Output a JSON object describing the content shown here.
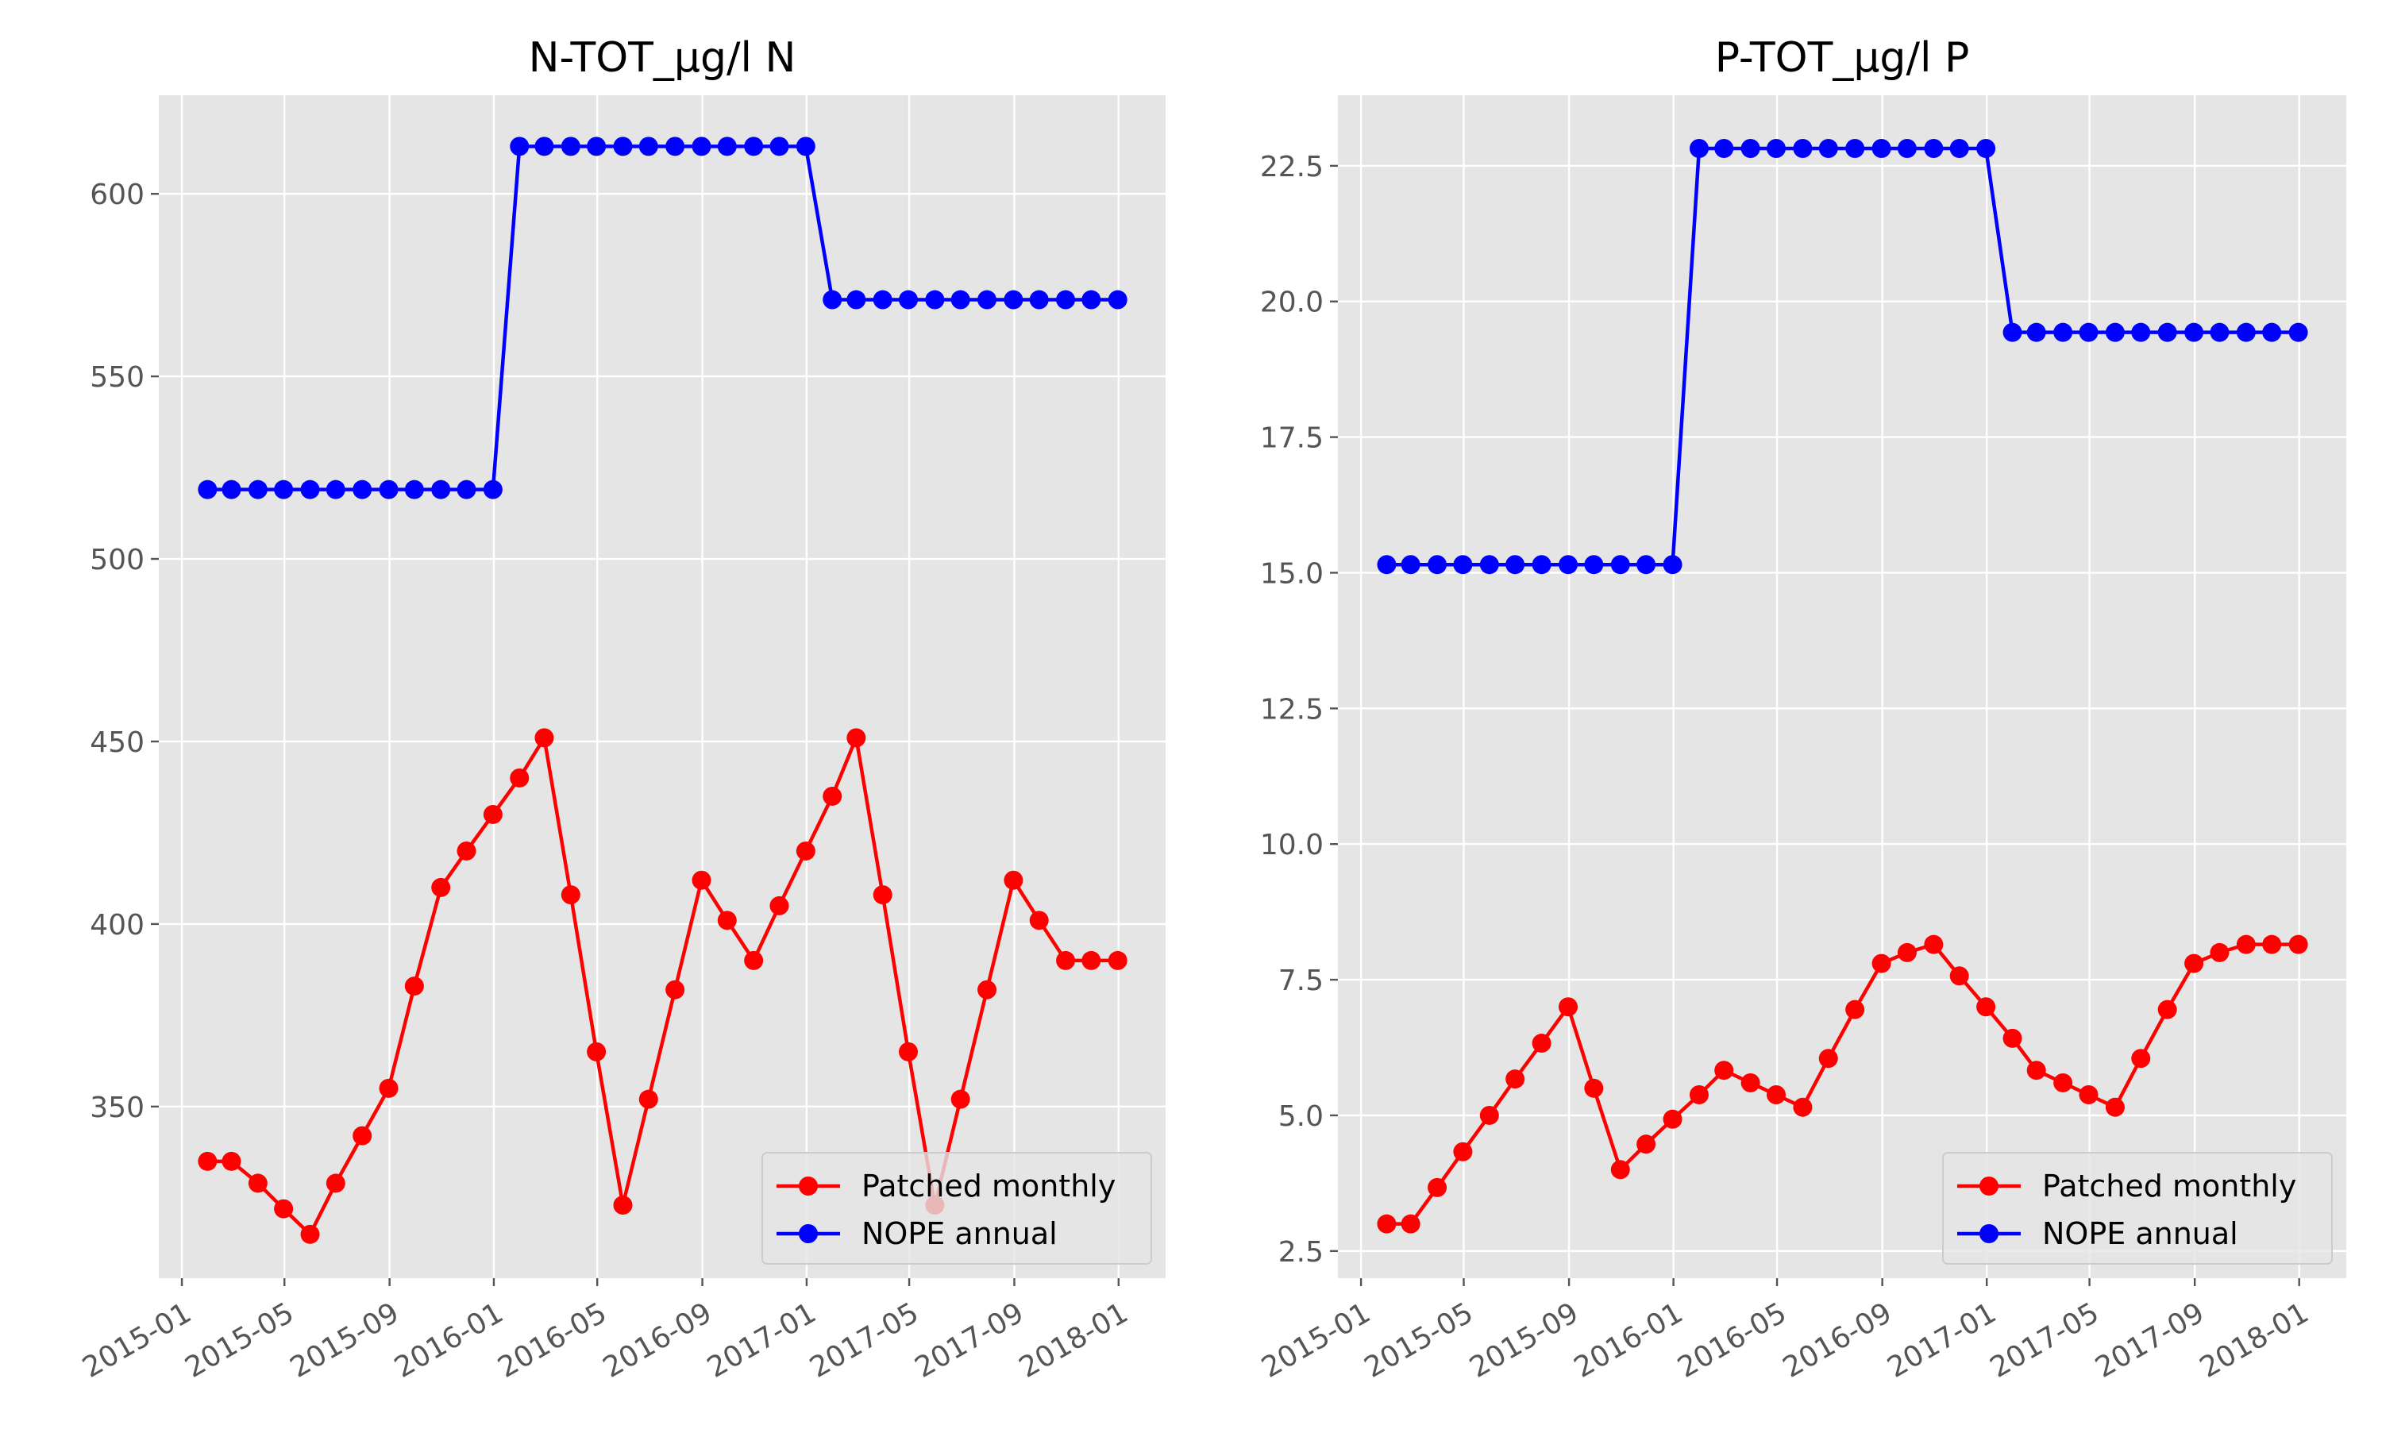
{
  "chart_data": [
    {
      "type": "line",
      "title": "N-TOT_µg/l N",
      "xlabel": "",
      "ylabel": "",
      "x_ticks": [
        "2015-01",
        "2015-05",
        "2015-09",
        "2016-01",
        "2016-05",
        "2016-09",
        "2017-01",
        "2017-05",
        "2017-09",
        "2018-01"
      ],
      "y_ticks": [
        "350",
        "400",
        "450",
        "500",
        "550",
        "600"
      ],
      "xlim": [
        "2014-12-05",
        "2018-02-25"
      ],
      "ylim": [
        303,
        627
      ],
      "grid": true,
      "legend_position": "bottom-right",
      "x": [
        "2015-01-31",
        "2015-02-28",
        "2015-03-31",
        "2015-04-30",
        "2015-05-31",
        "2015-06-30",
        "2015-07-31",
        "2015-08-31",
        "2015-09-30",
        "2015-10-31",
        "2015-11-30",
        "2015-12-31",
        "2016-01-31",
        "2016-02-29",
        "2016-03-31",
        "2016-04-30",
        "2016-05-31",
        "2016-06-30",
        "2016-07-31",
        "2016-08-31",
        "2016-09-30",
        "2016-10-31",
        "2016-11-30",
        "2016-12-31",
        "2017-01-31",
        "2017-02-28",
        "2017-03-31",
        "2017-04-30",
        "2017-05-31",
        "2017-06-30",
        "2017-07-31",
        "2017-08-31",
        "2017-09-30",
        "2017-10-31",
        "2017-11-30",
        "2017-12-31"
      ],
      "series": [
        {
          "name": "Patched monthly",
          "color": "#ff0000",
          "values": [
            335,
            335,
            329,
            322,
            315,
            329,
            342,
            355,
            383,
            410,
            420,
            430,
            440,
            451,
            408,
            365,
            323,
            352,
            382,
            412,
            401,
            390,
            405,
            420,
            435,
            451,
            408,
            365,
            323,
            352,
            382,
            412,
            401,
            390,
            390,
            390
          ]
        },
        {
          "name": "NOPE annual",
          "color": "#0000ff",
          "values": [
            519,
            519,
            519,
            519,
            519,
            519,
            519,
            519,
            519,
            519,
            519,
            519,
            613,
            613,
            613,
            613,
            613,
            613,
            613,
            613,
            613,
            613,
            613,
            613,
            571,
            571,
            571,
            571,
            571,
            571,
            571,
            571,
            571,
            571,
            571,
            571
          ]
        }
      ]
    },
    {
      "type": "line",
      "title": "P-TOT_µg/l P",
      "xlabel": "",
      "ylabel": "",
      "x_ticks": [
        "2015-01",
        "2015-05",
        "2015-09",
        "2016-01",
        "2016-05",
        "2016-09",
        "2017-01",
        "2017-05",
        "2017-09",
        "2018-01"
      ],
      "y_ticks": [
        "2.5",
        "5.0",
        "7.5",
        "10.0",
        "12.5",
        "15.0",
        "17.5",
        "20.0",
        "22.5"
      ],
      "xlim": [
        "2014-12-05",
        "2018-02-25"
      ],
      "ylim": [
        2.0,
        23.8
      ],
      "grid": true,
      "legend_position": "bottom-right",
      "x": [
        "2015-01-31",
        "2015-02-28",
        "2015-03-31",
        "2015-04-30",
        "2015-05-31",
        "2015-06-30",
        "2015-07-31",
        "2015-08-31",
        "2015-09-30",
        "2015-10-31",
        "2015-11-30",
        "2015-12-31",
        "2016-01-31",
        "2016-02-29",
        "2016-03-31",
        "2016-04-30",
        "2016-05-31",
        "2016-06-30",
        "2016-07-31",
        "2016-08-31",
        "2016-09-30",
        "2016-10-31",
        "2016-11-30",
        "2016-12-31",
        "2017-01-31",
        "2017-02-28",
        "2017-03-31",
        "2017-04-30",
        "2017-05-31",
        "2017-06-30",
        "2017-07-31",
        "2017-08-31",
        "2017-09-30",
        "2017-10-31",
        "2017-11-30",
        "2017-12-31"
      ],
      "series": [
        {
          "name": "Patched monthly",
          "color": "#ff0000",
          "values": [
            3.0,
            3.0,
            3.67,
            4.33,
            5.0,
            5.67,
            6.33,
            7.0,
            5.5,
            4.0,
            4.47,
            4.93,
            5.38,
            5.83,
            5.6,
            5.38,
            5.15,
            6.05,
            6.95,
            7.8,
            8.0,
            8.15,
            7.57,
            7.0,
            6.42,
            5.83,
            5.6,
            5.38,
            5.15,
            6.05,
            6.95,
            7.8,
            8.0,
            8.15,
            8.15,
            8.15
          ]
        },
        {
          "name": "NOPE annual",
          "color": "#0000ff",
          "values": [
            15.15,
            15.15,
            15.15,
            15.15,
            15.15,
            15.15,
            15.15,
            15.15,
            15.15,
            15.15,
            15.15,
            15.15,
            22.82,
            22.82,
            22.82,
            22.82,
            22.82,
            22.82,
            22.82,
            22.82,
            22.82,
            22.82,
            22.82,
            22.82,
            19.43,
            19.43,
            19.43,
            19.43,
            19.43,
            19.43,
            19.43,
            19.43,
            19.43,
            19.43,
            19.43,
            19.43
          ]
        }
      ]
    }
  ]
}
